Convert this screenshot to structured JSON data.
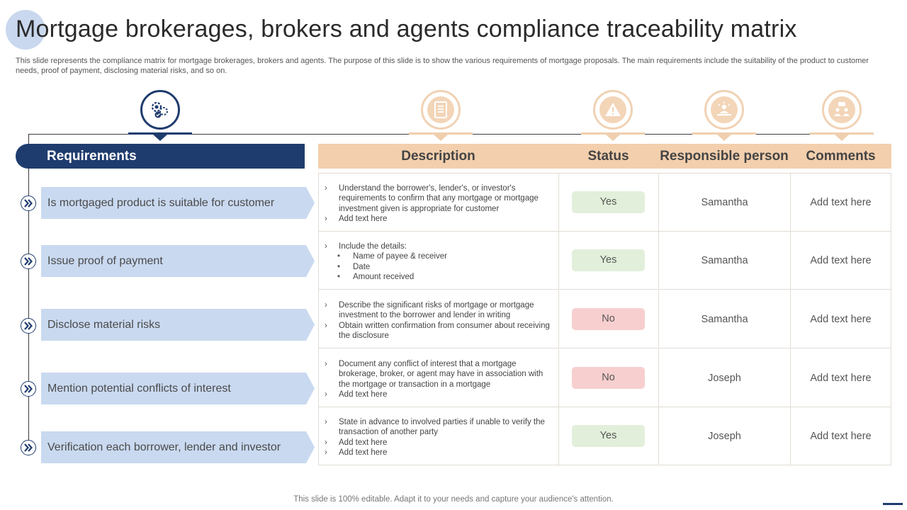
{
  "title": "Mortgage brokerages, brokers and agents compliance traceability matrix",
  "subtitle": "This slide represents the compliance matrix for mortgage brokerages, brokers and agents. The purpose of this slide is to show the various requirements of mortgage proposals. The main requirements include the suitability of the product to  customer needs, proof of payment, disclosing material risks, and so on.",
  "colors": {
    "navy": "#1f3c6e",
    "tan": "#f3cfad",
    "req_fill": "#c9d9f0",
    "yes": "#e2efda",
    "no": "#f8cfcf"
  },
  "icons": [
    "compliance-gears-icon",
    "document-icon",
    "warning-icon",
    "presenter-icon",
    "team-icon"
  ],
  "headers": {
    "requirements": "Requirements",
    "description": "Description",
    "status": "Status",
    "person": "Responsible person",
    "comments": "Comments"
  },
  "rows": [
    {
      "requirement": "Is mortgaged product is suitable for customer",
      "desc": [
        {
          "marker": "›",
          "text": "Understand the borrower's, lender's, or investor's requirements to confirm that any mortgage or mortgage investment given is appropriate for customer"
        },
        {
          "marker": "›",
          "text": "Add text here"
        }
      ],
      "status": "Yes",
      "person": "Samantha",
      "comment": "Add text here"
    },
    {
      "requirement": "Issue  proof of payment",
      "desc": [
        {
          "marker": "›",
          "text": "Include the details:"
        },
        {
          "marker": "•",
          "text": "Name of payee & receiver",
          "sub": true
        },
        {
          "marker": "•",
          "text": "Date",
          "sub": true
        },
        {
          "marker": "•",
          "text": "Amount received",
          "sub": true
        }
      ],
      "status": "Yes",
      "person": "Samantha",
      "comment": "Add text here"
    },
    {
      "requirement": "Disclose material risks",
      "desc": [
        {
          "marker": "›",
          "text": "Describe the significant risks of mortgage or mortgage investment to the borrower and lender in writing"
        },
        {
          "marker": "›",
          "text": "Obtain written confirmation from consumer about receiving the disclosure"
        }
      ],
      "status": "No",
      "person": "Samantha",
      "comment": "Add text here"
    },
    {
      "requirement": "Mention potential conflicts of interest",
      "desc": [
        {
          "marker": "›",
          "text": "Document any conflict of interest that a mortgage brokerage, broker, or agent may have in association with the mortgage or transaction in a mortgage"
        },
        {
          "marker": "›",
          "text": "Add text here"
        }
      ],
      "status": "No",
      "person": "Joseph",
      "comment": "Add text here"
    },
    {
      "requirement": "Verification each borrower, lender and investor",
      "desc": [
        {
          "marker": "›",
          "text": "State in advance to involved parties if unable to verify the transaction of another party"
        },
        {
          "marker": "›",
          "text": "Add text here"
        },
        {
          "marker": "›",
          "text": "Add text here"
        }
      ],
      "status": "Yes",
      "person": "Joseph",
      "comment": "Add text here"
    }
  ],
  "footer": "This slide is 100% editable. Adapt it to your needs and capture your audience's attention."
}
